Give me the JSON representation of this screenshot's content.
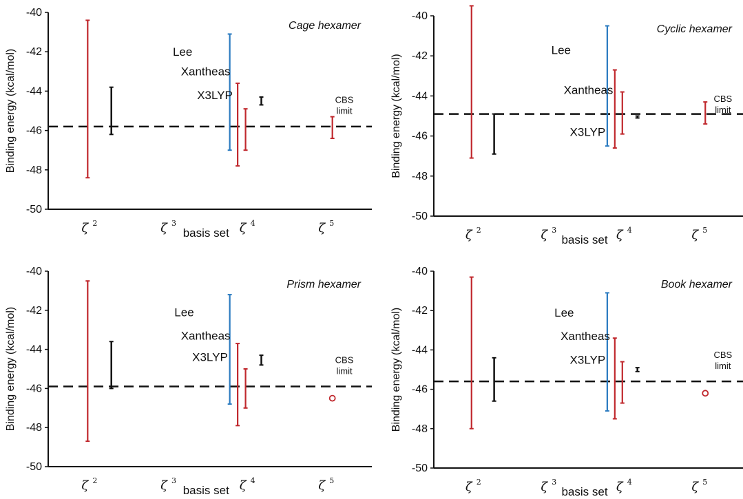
{
  "figure": {
    "colors": {
      "red": "#c0282d",
      "blue": "#2b7bc0",
      "black": "#111111"
    },
    "labels": {
      "cbs_line1": "CBS",
      "cbs_line2": "limit"
    }
  },
  "chart_data": [
    {
      "type": "error-bar",
      "title": "Cage hexamer",
      "xlabel": "basis set",
      "ylabel": "Binding energy (kcal/mol)",
      "ylim": [
        -50,
        -40
      ],
      "yticks": [
        "-40",
        "-42",
        "-44",
        "-46",
        "-48",
        "-50"
      ],
      "categories": [
        {
          "base": "ζ",
          "sup": "2"
        },
        {
          "base": "ζ",
          "sup": "3"
        },
        {
          "base": "ζ",
          "sup": "4"
        },
        {
          "base": "ζ",
          "sup": "5"
        }
      ],
      "cbs_limit": -45.8,
      "series": [
        {
          "name": "Lee",
          "color": "blue",
          "bars": [
            {
              "x": 2.8,
              "low": -47.0,
              "high": -41.1
            }
          ]
        },
        {
          "name": "Xantheas",
          "color": "red",
          "bars": [
            {
              "x": 1.0,
              "low": -48.4,
              "high": -40.4
            },
            {
              "x": 2.9,
              "low": -47.8,
              "high": -43.6
            },
            {
              "x": 3.0,
              "low": -47.0,
              "high": -44.9
            },
            {
              "x": 4.1,
              "low": -46.4,
              "high": -45.3
            }
          ]
        },
        {
          "name": "X3LYP",
          "color": "black",
          "bars": [
            {
              "x": 1.3,
              "low": -46.2,
              "high": -43.8
            },
            {
              "x": 3.2,
              "low": -44.7,
              "high": -44.3
            }
          ]
        }
      ],
      "markers": []
    },
    {
      "type": "error-bar",
      "title": "Cyclic hexamer",
      "xlabel": "basis set",
      "ylabel": "Binding energy (kcal/mol)",
      "ylim": [
        -50,
        -40
      ],
      "yticks": [
        "-40",
        "-42",
        "-44",
        "-46",
        "-48",
        "-50"
      ],
      "categories": [
        {
          "base": "ζ",
          "sup": "2"
        },
        {
          "base": "ζ",
          "sup": "3"
        },
        {
          "base": "ζ",
          "sup": "4"
        },
        {
          "base": "ζ",
          "sup": "5"
        }
      ],
      "cbs_limit": -44.9,
      "series": [
        {
          "name": "Lee",
          "color": "blue",
          "bars": [
            {
              "x": 2.8,
              "low": -46.5,
              "high": -40.5
            }
          ]
        },
        {
          "name": "Xantheas",
          "color": "red",
          "bars": [
            {
              "x": 1.0,
              "low": -47.1,
              "high": -39.5
            },
            {
              "x": 2.9,
              "low": -46.6,
              "high": -42.7
            },
            {
              "x": 3.0,
              "low": -45.9,
              "high": -43.8
            },
            {
              "x": 4.1,
              "low": -45.4,
              "high": -44.3
            }
          ]
        },
        {
          "name": "X3LYP",
          "color": "black",
          "bars": [
            {
              "x": 1.3,
              "low": -46.9,
              "high": -44.9
            },
            {
              "x": 3.2,
              "low": -45.1,
              "high": -45.0
            }
          ]
        }
      ],
      "markers": []
    },
    {
      "type": "error-bar",
      "title": "Prism hexamer",
      "xlabel": "basis set",
      "ylabel": "Binding energy (kcal/mol)",
      "ylim": [
        -50,
        -40
      ],
      "yticks": [
        "-40",
        "-42",
        "-44",
        "-46",
        "-48",
        "-50"
      ],
      "categories": [
        {
          "base": "ζ",
          "sup": "2"
        },
        {
          "base": "ζ",
          "sup": "3"
        },
        {
          "base": "ζ",
          "sup": "4"
        },
        {
          "base": "ζ",
          "sup": "5"
        }
      ],
      "cbs_limit": -45.9,
      "series": [
        {
          "name": "Lee",
          "color": "blue",
          "bars": [
            {
              "x": 2.8,
              "low": -46.8,
              "high": -41.2
            }
          ]
        },
        {
          "name": "Xantheas",
          "color": "red",
          "bars": [
            {
              "x": 1.0,
              "low": -48.7,
              "high": -40.5
            },
            {
              "x": 2.9,
              "low": -47.9,
              "high": -43.7
            },
            {
              "x": 3.0,
              "low": -47.0,
              "high": -45.0
            }
          ]
        },
        {
          "name": "X3LYP",
          "color": "black",
          "bars": [
            {
              "x": 1.3,
              "low": -46.0,
              "high": -43.6
            },
            {
              "x": 3.2,
              "low": -44.8,
              "high": -44.3
            }
          ]
        }
      ],
      "markers": [
        {
          "x": 4.1,
          "y": -46.5,
          "color": "red",
          "shape": "open-circle"
        }
      ]
    },
    {
      "type": "error-bar",
      "title": "Book hexamer",
      "xlabel": "basis set",
      "ylabel": "Binding energy (kcal/mol)",
      "ylim": [
        -50,
        -40
      ],
      "yticks": [
        "-40",
        "-42",
        "-44",
        "-46",
        "-48",
        "-50"
      ],
      "categories": [
        {
          "base": "ζ",
          "sup": "2"
        },
        {
          "base": "ζ",
          "sup": "3"
        },
        {
          "base": "ζ",
          "sup": "4"
        },
        {
          "base": "ζ",
          "sup": "5"
        }
      ],
      "cbs_limit": -45.6,
      "series": [
        {
          "name": "Lee",
          "color": "blue",
          "bars": [
            {
              "x": 2.8,
              "low": -47.1,
              "high": -41.1
            }
          ]
        },
        {
          "name": "Xantheas",
          "color": "red",
          "bars": [
            {
              "x": 1.0,
              "low": -48.0,
              "high": -40.3
            },
            {
              "x": 2.9,
              "low": -47.5,
              "high": -43.4
            },
            {
              "x": 3.0,
              "low": -46.7,
              "high": -44.6
            }
          ]
        },
        {
          "name": "X3LYP",
          "color": "black",
          "bars": [
            {
              "x": 1.3,
              "low": -46.6,
              "high": -44.4
            },
            {
              "x": 3.2,
              "low": -45.1,
              "high": -44.9
            }
          ]
        }
      ],
      "markers": [
        {
          "x": 4.1,
          "y": -46.2,
          "color": "red",
          "shape": "open-circle"
        }
      ]
    }
  ]
}
